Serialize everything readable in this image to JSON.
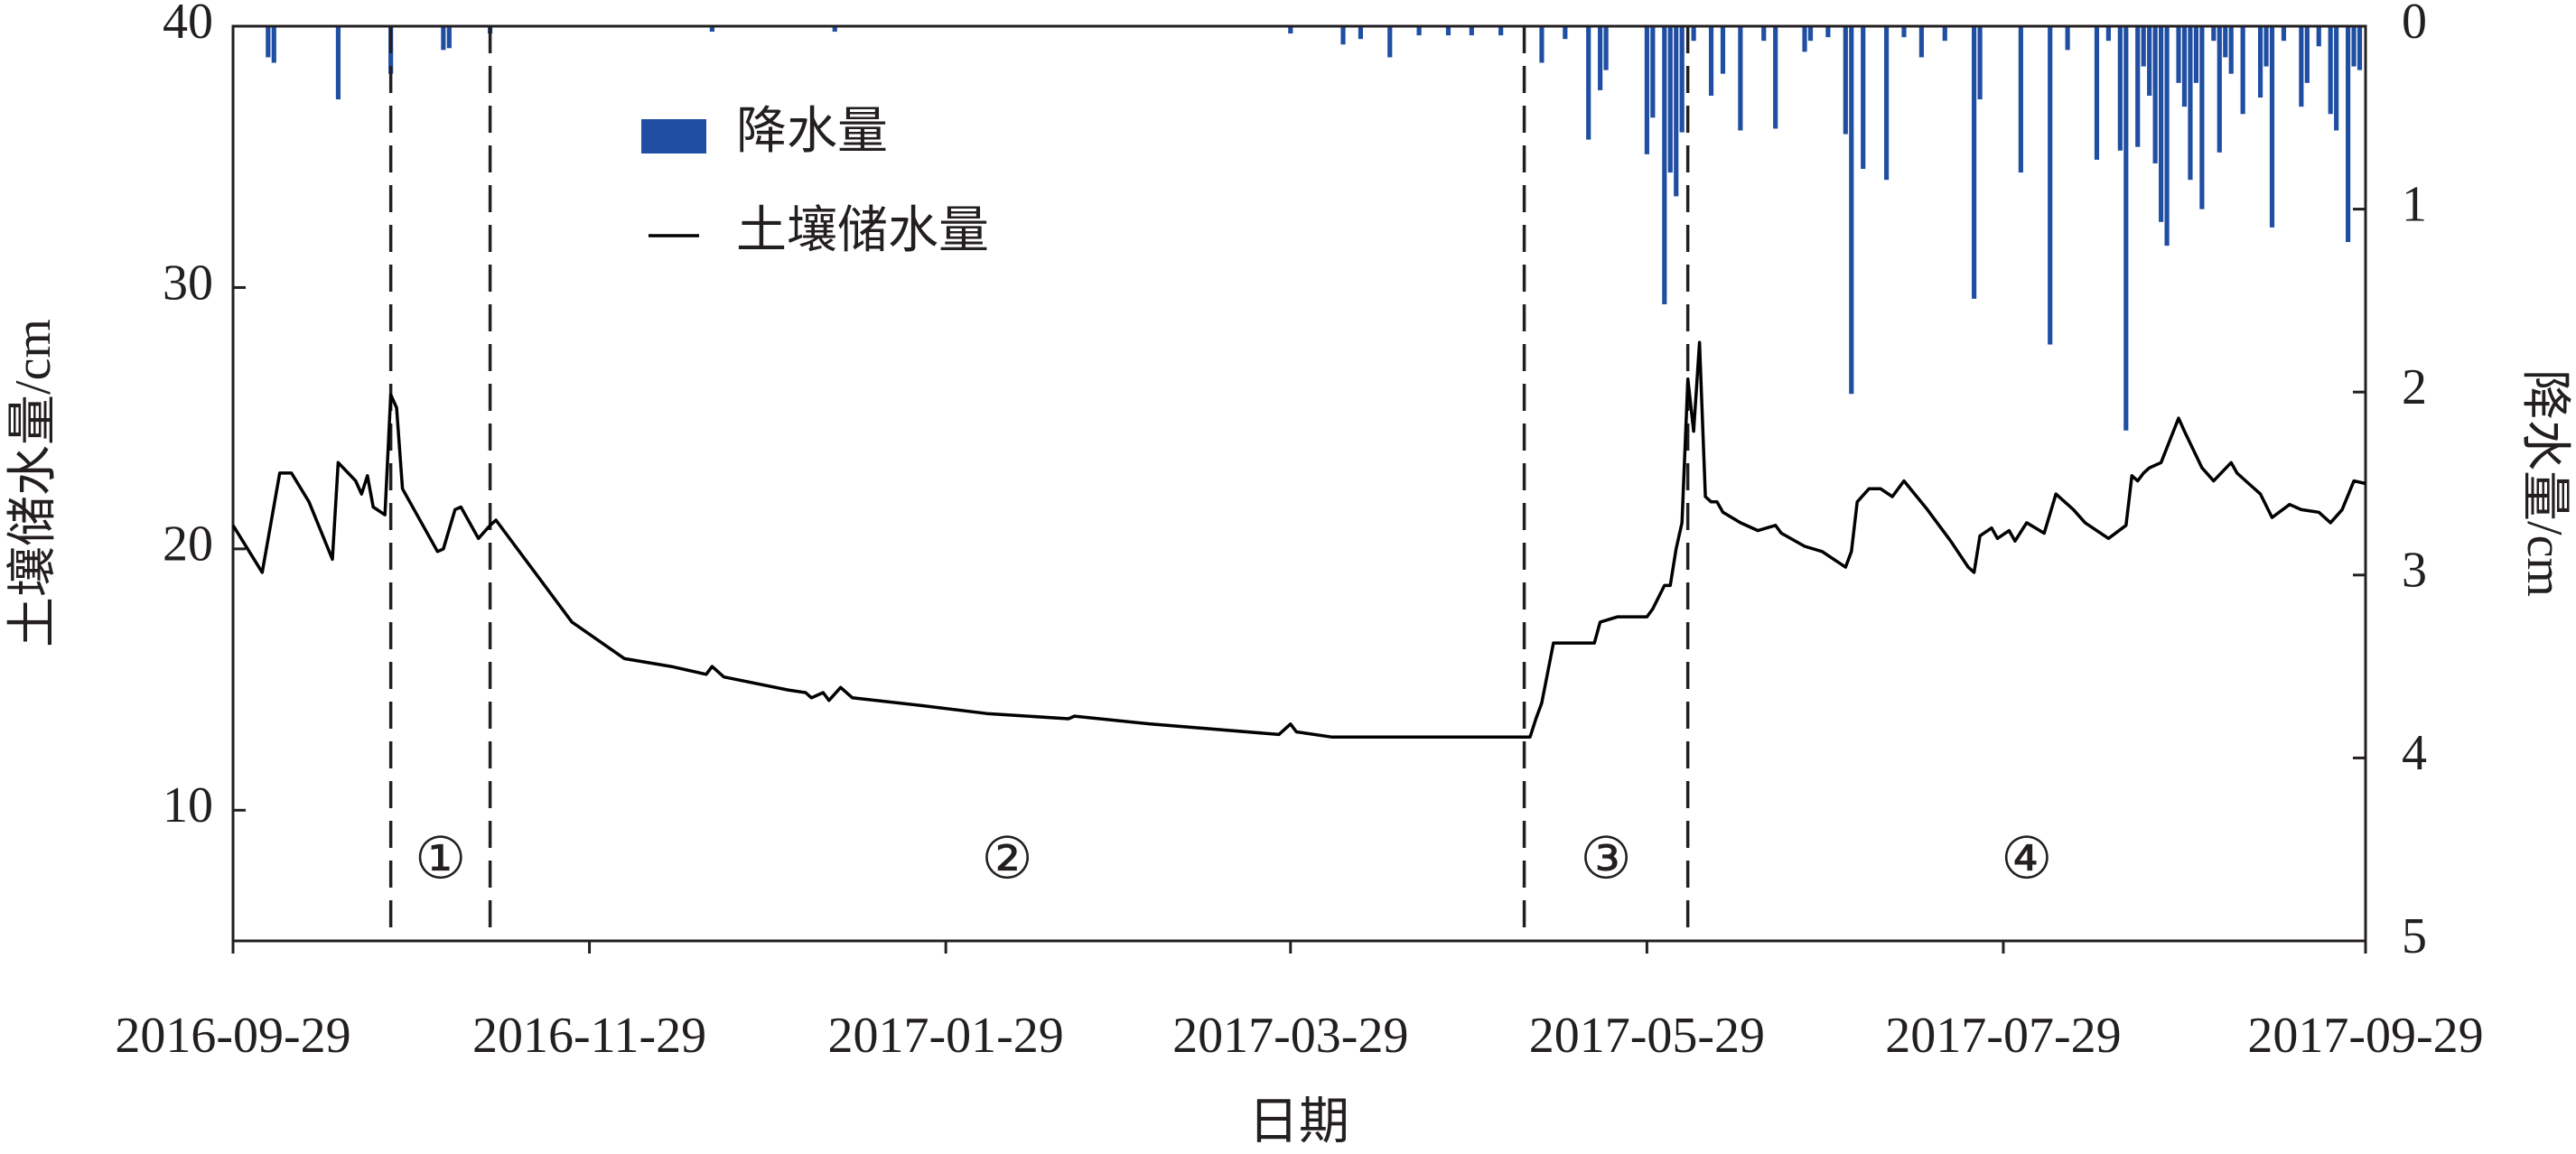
{
  "chart_data": {
    "type": "combo",
    "x_label": "日期",
    "y_label": "土壤储水量/cm",
    "y2_label": "降水量/cm",
    "xlim": [
      "2016-09-29",
      "2017-09-29"
    ],
    "xticks": [
      "2016-09-29",
      "2016-11-29",
      "2017-01-29",
      "2017-03-29",
      "2017-05-29",
      "2017-07-29",
      "2017-09-29"
    ],
    "ylim": [
      5,
      40
    ],
    "yticks": [
      10,
      20,
      30,
      40
    ],
    "y2lim": [
      0,
      5
    ],
    "y2ticks": [
      0,
      1,
      2,
      3,
      4,
      5
    ],
    "y2_inverted": true,
    "legend": "upper left",
    "dividers": [
      "2016-10-26",
      "2016-11-12",
      "2017-05-08",
      "2017-06-05"
    ],
    "period_labels": [
      "①",
      "②",
      "③",
      "④"
    ],
    "series": [
      {
        "name": "降水量",
        "type": "bar",
        "axis": "y2",
        "color": "#1f4ea3",
        "x": [
          "2016-10-05",
          "2016-10-06",
          "2016-10-17",
          "2016-10-26",
          "2016-11-04",
          "2016-11-05",
          "2016-11-12",
          "2016-12-20",
          "2017-01-10",
          "2017-03-29",
          "2017-04-07",
          "2017-04-10",
          "2017-04-15",
          "2017-04-20",
          "2017-04-25",
          "2017-04-29",
          "2017-05-04",
          "2017-05-11",
          "2017-05-15",
          "2017-05-19",
          "2017-05-21",
          "2017-05-22",
          "2017-05-29",
          "2017-05-30",
          "2017-06-01",
          "2017-06-02",
          "2017-06-03",
          "2017-06-04",
          "2017-06-06",
          "2017-06-09",
          "2017-06-11",
          "2017-06-14",
          "2017-06-18",
          "2017-06-20",
          "2017-06-25",
          "2017-06-26",
          "2017-06-29",
          "2017-07-02",
          "2017-07-03",
          "2017-07-05",
          "2017-07-09",
          "2017-07-12",
          "2017-07-15",
          "2017-07-19",
          "2017-07-24",
          "2017-07-25",
          "2017-08-01",
          "2017-08-06",
          "2017-08-09",
          "2017-08-14",
          "2017-08-16",
          "2017-08-18",
          "2017-08-19",
          "2017-08-21",
          "2017-08-22",
          "2017-08-23",
          "2017-08-24",
          "2017-08-25",
          "2017-08-26",
          "2017-08-28",
          "2017-08-29",
          "2017-08-30",
          "2017-08-31",
          "2017-09-01",
          "2017-09-03",
          "2017-09-04",
          "2017-09-05",
          "2017-09-06",
          "2017-09-08",
          "2017-09-11",
          "2017-09-12",
          "2017-09-13",
          "2017-09-15",
          "2017-09-18",
          "2017-09-19",
          "2017-09-21",
          "2017-09-23",
          "2017-09-24",
          "2017-09-26",
          "2017-09-27",
          "2017-09-28"
        ],
        "values": [
          0.17,
          0.2,
          0.4,
          0.26,
          0.13,
          0.12,
          0.04,
          0.03,
          0.03,
          0.04,
          0.1,
          0.07,
          0.17,
          0.05,
          0.05,
          0.05,
          0.05,
          0.2,
          0.07,
          0.62,
          0.35,
          0.24,
          0.7,
          0.5,
          1.52,
          0.8,
          0.93,
          0.58,
          0.08,
          0.38,
          0.26,
          0.57,
          0.08,
          0.56,
          0.14,
          0.08,
          0.06,
          0.59,
          2.01,
          0.78,
          0.84,
          0.06,
          0.17,
          0.08,
          1.49,
          0.4,
          0.8,
          1.74,
          0.13,
          0.73,
          0.08,
          0.68,
          2.21,
          0.66,
          0.22,
          0.38,
          0.75,
          1.07,
          1.2,
          0.31,
          0.44,
          0.84,
          0.31,
          1.0,
          0.08,
          0.69,
          0.17,
          0.26,
          0.48,
          0.39,
          0.22,
          1.1,
          0.08,
          0.44,
          0.31,
          0.11,
          0.48,
          0.57,
          1.18,
          0.22,
          0.24
        ]
      },
      {
        "name": "土壤储水量",
        "type": "line",
        "color": "#000000",
        "x": [
          "2016-09-29",
          "2016-10-04",
          "2016-10-07",
          "2016-10-09",
          "2016-10-12",
          "2016-10-16",
          "2016-10-17",
          "2016-10-20",
          "2016-10-21",
          "2016-10-22",
          "2016-10-23",
          "2016-10-25",
          "2016-10-26",
          "2016-10-27",
          "2016-10-28",
          "2016-11-03",
          "2016-11-04",
          "2016-11-06",
          "2016-11-07",
          "2016-11-10",
          "2016-11-12",
          "2016-11-13",
          "2016-11-18",
          "2016-11-26",
          "2016-12-05",
          "2016-12-13",
          "2016-12-19",
          "2016-12-20",
          "2016-12-22",
          "2017-01-02",
          "2017-01-05",
          "2017-01-06",
          "2017-01-08",
          "2017-01-09",
          "2017-01-11",
          "2017-01-13",
          "2017-01-25",
          "2017-02-05",
          "2017-02-19",
          "2017-02-20",
          "2017-03-05",
          "2017-03-27",
          "2017-03-29",
          "2017-03-30",
          "2017-04-05",
          "2017-04-30",
          "2017-05-09",
          "2017-05-10",
          "2017-05-11",
          "2017-05-13",
          "2017-05-17",
          "2017-05-20",
          "2017-05-21",
          "2017-05-24",
          "2017-05-29",
          "2017-05-30",
          "2017-06-01",
          "2017-06-02",
          "2017-06-03",
          "2017-06-04",
          "2017-06-05",
          "2017-06-06",
          "2017-06-07",
          "2017-06-08",
          "2017-06-09",
          "2017-06-10",
          "2017-06-11",
          "2017-06-14",
          "2017-06-17",
          "2017-06-20",
          "2017-06-21",
          "2017-06-25",
          "2017-06-28",
          "2017-07-02",
          "2017-07-03",
          "2017-07-04",
          "2017-07-06",
          "2017-07-08",
          "2017-07-10",
          "2017-07-12",
          "2017-07-16",
          "2017-07-20",
          "2017-07-23",
          "2017-07-24",
          "2017-07-25",
          "2017-07-27",
          "2017-07-28",
          "2017-07-30",
          "2017-07-31",
          "2017-08-02",
          "2017-08-05",
          "2017-08-07",
          "2017-08-10",
          "2017-08-12",
          "2017-08-16",
          "2017-08-19",
          "2017-08-20",
          "2017-08-21",
          "2017-08-22",
          "2017-08-23",
          "2017-08-25",
          "2017-08-28",
          "2017-08-29",
          "2017-09-01",
          "2017-09-03",
          "2017-09-06",
          "2017-09-07",
          "2017-09-09",
          "2017-09-11",
          "2017-09-13",
          "2017-09-16",
          "2017-09-18",
          "2017-09-21",
          "2017-09-23",
          "2017-09-25",
          "2017-09-27",
          "2017-09-29"
        ],
        "values": [
          20.9,
          19.1,
          22.9,
          22.9,
          21.8,
          19.6,
          23.3,
          22.6,
          22.1,
          22.8,
          21.6,
          21.3,
          25.9,
          25.4,
          22.3,
          19.9,
          20.0,
          21.5,
          21.6,
          20.4,
          20.9,
          21.1,
          19.6,
          17.2,
          15.8,
          15.5,
          15.2,
          15.5,
          15.1,
          14.6,
          14.5,
          14.3,
          14.5,
          14.2,
          14.7,
          14.3,
          14.0,
          13.7,
          13.5,
          13.6,
          13.3,
          12.9,
          13.3,
          13.0,
          12.8,
          12.8,
          12.8,
          13.5,
          14.1,
          16.4,
          16.4,
          16.4,
          17.2,
          17.4,
          17.4,
          17.7,
          18.6,
          18.6,
          20.0,
          21.0,
          26.5,
          24.5,
          27.9,
          22.0,
          21.8,
          21.8,
          21.4,
          21.0,
          20.7,
          20.9,
          20.6,
          20.1,
          19.9,
          19.3,
          19.9,
          21.8,
          22.3,
          22.3,
          22.0,
          22.6,
          21.5,
          20.3,
          19.3,
          19.1,
          20.5,
          20.8,
          20.4,
          20.7,
          20.3,
          21.0,
          20.6,
          22.1,
          21.5,
          21.0,
          20.4,
          20.9,
          22.8,
          22.6,
          22.9,
          23.1,
          23.3,
          25.0,
          24.5,
          23.1,
          22.6,
          23.3,
          22.9,
          22.5,
          22.1,
          21.2,
          21.7,
          21.5,
          21.4,
          21.0,
          21.5,
          22.6,
          22.5
        ]
      }
    ]
  }
}
